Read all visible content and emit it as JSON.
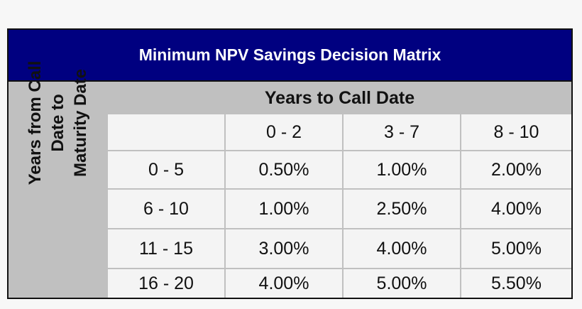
{
  "title": "Minimum NPV Savings Decision Matrix",
  "column_header": "Years to Call Date",
  "row_header_lines": [
    "Years from Call",
    "Date to",
    "Maturity Date"
  ],
  "columns": [
    "0 - 2",
    "3 - 7",
    "8 - 10"
  ],
  "rows": [
    {
      "label": "0 - 5",
      "values": [
        "0.50%",
        "1.00%",
        "2.00%"
      ]
    },
    {
      "label": "6 - 10",
      "values": [
        "1.00%",
        "2.50%",
        "4.00%"
      ]
    },
    {
      "label": "11 - 15",
      "values": [
        "3.00%",
        "4.00%",
        "5.00%"
      ]
    },
    {
      "label": "16 - 20",
      "values": [
        "4.00%",
        "5.00%",
        "5.50%"
      ]
    }
  ],
  "colors": {
    "title_bg": "#000080",
    "header_bg": "#c0c0c0",
    "cell_bg": "#f4f4f4"
  }
}
